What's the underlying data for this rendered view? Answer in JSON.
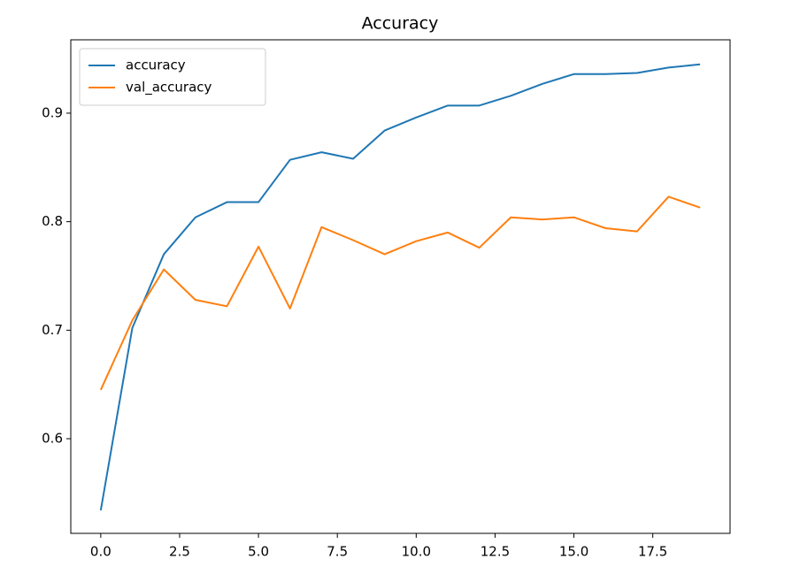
{
  "chart_data": {
    "type": "line",
    "title": "Accuracy",
    "x": [
      0,
      1,
      2,
      3,
      4,
      5,
      6,
      7,
      8,
      9,
      10,
      11,
      12,
      13,
      14,
      15,
      16,
      17,
      18,
      19
    ],
    "series": [
      {
        "name": "accuracy",
        "color": "#1f77b4",
        "values": [
          0.534,
          0.702,
          0.77,
          0.804,
          0.818,
          0.818,
          0.857,
          0.864,
          0.858,
          0.884,
          0.896,
          0.907,
          0.907,
          0.916,
          0.927,
          0.936,
          0.936,
          0.937,
          0.942,
          0.945
        ]
      },
      {
        "name": "val_accuracy",
        "color": "#ff7f0e",
        "values": [
          0.645,
          0.709,
          0.756,
          0.728,
          0.722,
          0.777,
          0.72,
          0.795,
          0.783,
          0.77,
          0.782,
          0.79,
          0.776,
          0.804,
          0.802,
          0.804,
          0.794,
          0.791,
          0.823,
          0.813
        ]
      }
    ],
    "xlim": [
      -0.95,
      19.95
    ],
    "xticks": [
      {
        "value": 0,
        "label": "0.0"
      },
      {
        "value": 2.5,
        "label": "2.5"
      },
      {
        "value": 5,
        "label": "5.0"
      },
      {
        "value": 7.5,
        "label": "7.5"
      },
      {
        "value": 10,
        "label": "10.0"
      },
      {
        "value": 12.5,
        "label": "12.5"
      },
      {
        "value": 15,
        "label": "15.0"
      },
      {
        "value": 17.5,
        "label": "17.5"
      }
    ],
    "ylim": [
      0.5128,
      0.9676
    ],
    "yticks": [
      0.6,
      0.7,
      0.8,
      0.9
    ],
    "legend": "upper left",
    "grid": false
  }
}
